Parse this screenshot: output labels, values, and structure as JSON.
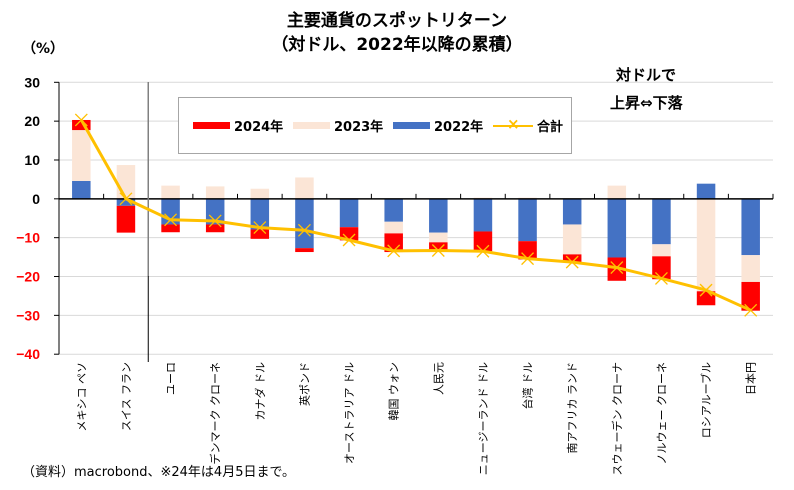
{
  "chart_data": {
    "type": "bar",
    "stacked": true,
    "title": "主要通貨のスポットリターン",
    "subtitle": "（対ドル、2022年以降の累積）",
    "ylabel": "（%）",
    "xlabel": "",
    "ylim": [
      -40,
      30
    ],
    "yticks": [
      30,
      20,
      10,
      0,
      -10,
      -20,
      -30,
      -40
    ],
    "ytick_labels": [
      "30",
      "20",
      "10",
      "0",
      "−10",
      "−20",
      "−30",
      "−40"
    ],
    "grid": true,
    "legend_position": "top-center",
    "categories": [
      "メキシコ ペソ",
      "スイス フラン",
      "ユーロ",
      "デンマーク クローネ",
      "カナダ ドル",
      "英ポンド",
      "オーストラリア ドル",
      "韓国 ウォン",
      "人民元",
      "ニュージーランド ドル",
      "台湾 ドル",
      "南アフリカ ランド",
      "スウェーデン クローナ",
      "ノルウェー クローネ",
      "ロシアルーブル",
      "日本円"
    ],
    "series": [
      {
        "name": "2022年",
        "kind": "bar",
        "color": "#4472c4",
        "values": [
          4.6,
          -1.8,
          -6.6,
          -6.6,
          -7.9,
          -12.7,
          -7.3,
          -5.9,
          -8.7,
          -8.4,
          -10.9,
          -6.6,
          -15.1,
          -11.7,
          3.9,
          -14.5
        ]
      },
      {
        "name": "2023年",
        "kind": "bar",
        "color": "#fbe5d6",
        "values": [
          13.1,
          8.7,
          3.4,
          3.2,
          2.6,
          5.5,
          0.2,
          -3.0,
          -2.5,
          0.3,
          0.3,
          -7.7,
          3.4,
          -3.1,
          -23.8,
          -6.9
        ]
      },
      {
        "name": "2024年",
        "kind": "bar",
        "color": "#ff0000",
        "values": [
          2.6,
          -6.9,
          -2.0,
          -2.0,
          -2.4,
          -1.0,
          -3.4,
          -4.8,
          -2.1,
          -5.1,
          -4.7,
          -2.0,
          -6.0,
          -5.9,
          -3.6,
          -7.4
        ]
      },
      {
        "name": "合計",
        "kind": "line",
        "color": "#ffc000",
        "marker": "x",
        "values": [
          20.3,
          0.0,
          -5.4,
          -5.7,
          -7.4,
          -8.1,
          -10.6,
          -13.4,
          -13.3,
          -13.5,
          -15.4,
          -16.3,
          -17.7,
          -20.5,
          -23.5,
          -28.7
        ]
      }
    ],
    "legend_order": [
      "2024年",
      "2023年",
      "2022年",
      "合計"
    ],
    "annotations": [
      "対ドルで",
      "上昇⇔下落"
    ],
    "note": "（資料）macrobond、※24年は4月5日まで。"
  }
}
